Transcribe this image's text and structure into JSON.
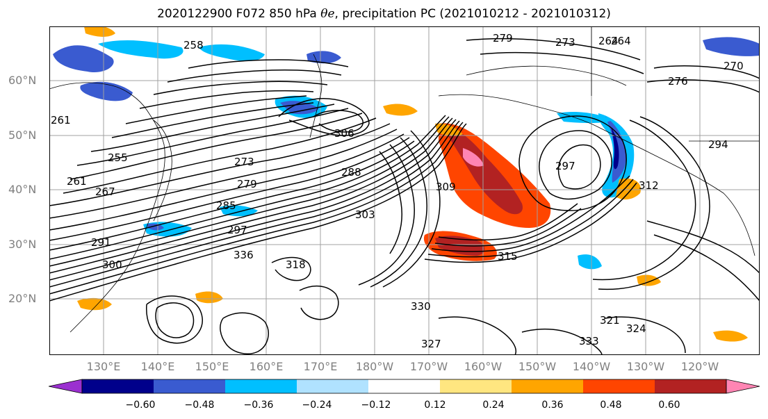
{
  "title": {
    "prefix": "2020122900 F072 850 hPa ",
    "symbol": "θe",
    "suffix": ", precipitation PC (2021010212 - 2021010312)"
  },
  "lat_labels": [
    "60°N",
    "50°N",
    "40°N",
    "30°N",
    "20°N"
  ],
  "lon_labels": [
    "130°E",
    "140°E",
    "150°E",
    "160°E",
    "170°E",
    "180°W",
    "170°W",
    "160°W",
    "150°W",
    "140°W",
    "130°W",
    "120°W"
  ],
  "contour_labels": [
    "258",
    "264",
    "270",
    "276",
    "279",
    "273",
    "264",
    "261",
    "255",
    "261",
    "267",
    "273",
    "279",
    "285",
    "291",
    "297",
    "300",
    "288",
    "297",
    "312",
    "309",
    "306",
    "303",
    "294",
    "336",
    "333",
    "330",
    "327",
    "324",
    "321",
    "318",
    "315"
  ],
  "colorbar": {
    "ticks": [
      "−0.60",
      "−0.48",
      "−0.36",
      "−0.24",
      "−0.12",
      "0.12",
      "0.24",
      "0.36",
      "0.48",
      "0.60"
    ],
    "colors": [
      "#9b30d0",
      "#00008b",
      "#3a5bd0",
      "#00bfff",
      "#b0e2ff",
      "#ffffff",
      "#ffe680",
      "#ffa500",
      "#ff4500",
      "#b22222",
      "#ff85b3"
    ],
    "extend": "both"
  },
  "colors": {
    "contour": "#000000",
    "grid": "#a0a0a0",
    "tick_label": "#808080"
  }
}
